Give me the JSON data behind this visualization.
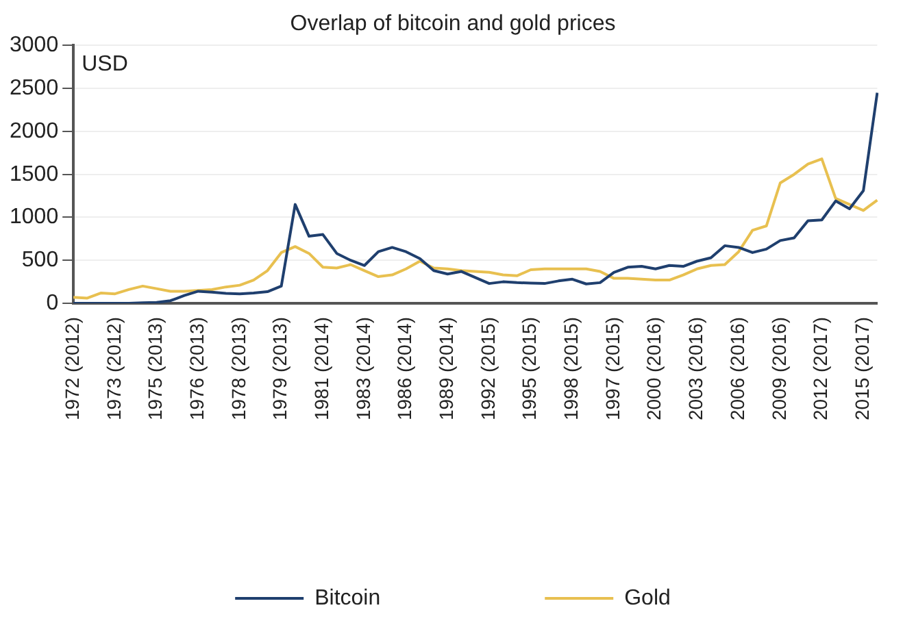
{
  "chart_data": {
    "type": "line",
    "title": "Overlap of bitcoin and gold prices",
    "annotations": [
      "USD"
    ],
    "categories": [
      "1972 (2012)",
      null,
      null,
      "1973 (2012)",
      null,
      null,
      "1975 (2013)",
      null,
      null,
      "1976 (2013)",
      null,
      null,
      "1978 (2013)",
      null,
      null,
      "1979 (2013)",
      null,
      null,
      "1981 (2014)",
      null,
      null,
      "1983 (2014)",
      null,
      null,
      "1986 (2014)",
      null,
      null,
      "1989 (2014)",
      null,
      null,
      "1992 (2015)",
      null,
      null,
      "1995 (2015)",
      null,
      null,
      "1998 (2015)",
      null,
      null,
      "1997 (2015)",
      null,
      null,
      "2000 (2016)",
      null,
      null,
      "2003 (2016)",
      null,
      null,
      "2006 (2016)",
      null,
      null,
      "2009 (2016)",
      null,
      null,
      "2012 (2017)",
      null,
      null,
      "2015 (2017)",
      null
    ],
    "series": [
      {
        "name": "Bitcoin",
        "color": "#1f3f6e",
        "values": [
          0,
          0,
          0,
          0,
          0,
          5,
          10,
          30,
          90,
          140,
          130,
          115,
          110,
          120,
          135,
          200,
          1150,
          780,
          800,
          580,
          500,
          440,
          600,
          650,
          600,
          520,
          380,
          340,
          370,
          300,
          230,
          250,
          240,
          235,
          230,
          260,
          280,
          225,
          240,
          360,
          420,
          430,
          400,
          440,
          430,
          490,
          530,
          670,
          650,
          590,
          630,
          730,
          760,
          960,
          970,
          1190,
          1100,
          1310,
          2450
        ]
      },
      {
        "name": "Gold",
        "color": "#e8c050",
        "values": [
          70,
          60,
          120,
          110,
          160,
          200,
          170,
          140,
          140,
          150,
          160,
          190,
          210,
          270,
          380,
          590,
          660,
          580,
          420,
          410,
          450,
          380,
          310,
          330,
          400,
          490,
          410,
          400,
          380,
          370,
          360,
          330,
          320,
          390,
          400,
          400,
          400,
          400,
          370,
          290,
          290,
          280,
          270,
          270,
          330,
          400,
          440,
          450,
          600,
          850,
          900,
          1400,
          1500,
          1620,
          1680,
          1220,
          1150,
          1080,
          1200
        ]
      }
    ],
    "ylim": [
      0,
      3000
    ],
    "yticks": [
      0,
      500,
      1000,
      1500,
      2000,
      2500,
      3000
    ],
    "grid": "y",
    "legend": "bottom",
    "marker": "none",
    "line_style": "solid"
  }
}
